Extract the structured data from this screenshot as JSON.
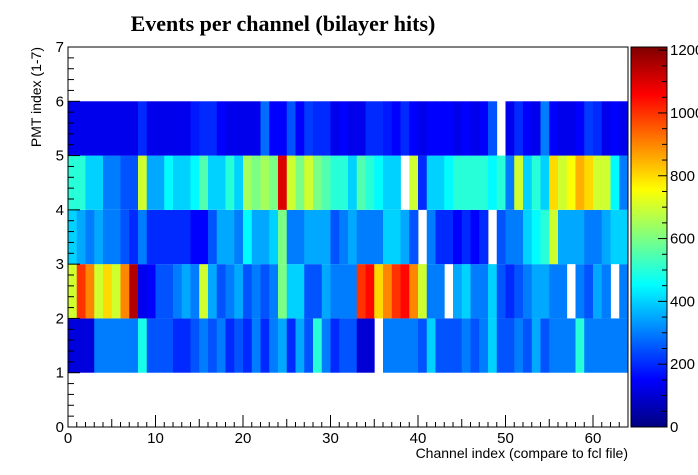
{
  "chart_data": {
    "type": "heatmap",
    "title": "Events per channel (bilayer hits)",
    "xlabel": "Channel index (compare to fcl file)",
    "ylabel": "PMT index (1-7)",
    "xlim": [
      0,
      64
    ],
    "ylim": [
      0,
      7
    ],
    "x_ticks": [
      "0",
      "10",
      "20",
      "30",
      "40",
      "50",
      "60"
    ],
    "y_ticks": [
      "0",
      "1",
      "2",
      "3",
      "4",
      "5",
      "6",
      "7"
    ],
    "colorbar": {
      "min": 0,
      "max": 1210,
      "ticks": [
        "0",
        "200",
        "400",
        "600",
        "800",
        "1000",
        "1200"
      ],
      "colormap": "jet"
    },
    "rows": [
      {
        "pmt": 1,
        "values": [
          110,
          110,
          110,
          300,
          300,
          300,
          300,
          300,
          480,
          250,
          250,
          250,
          200,
          200,
          250,
          300,
          250,
          300,
          200,
          250,
          200,
          300,
          200,
          300,
          350,
          200,
          350,
          250,
          500,
          300,
          200,
          250,
          250,
          100,
          100,
          0,
          300,
          300,
          300,
          300,
          250,
          400,
          250,
          250,
          250,
          300,
          250,
          300,
          400,
          250,
          250,
          300,
          250,
          350,
          250,
          300,
          300,
          300,
          500,
          300,
          300,
          300,
          300,
          300
        ]
      },
      {
        "pmt": 2,
        "values": [
          700,
          1000,
          900,
          700,
          800,
          700,
          900,
          1150,
          130,
          150,
          250,
          250,
          300,
          350,
          300,
          700,
          350,
          250,
          300,
          350,
          250,
          300,
          250,
          300,
          600,
          400,
          400,
          250,
          250,
          350,
          300,
          300,
          300,
          1000,
          1050,
          800,
          900,
          1000,
          1050,
          900,
          700,
          300,
          300,
          0,
          350,
          400,
          300,
          300,
          400,
          250,
          200,
          250,
          300,
          350,
          350,
          300,
          300,
          0,
          300,
          250,
          350,
          300,
          0,
          300
        ]
      },
      {
        "pmt": 3,
        "values": [
          400,
          350,
          300,
          350,
          300,
          300,
          250,
          200,
          300,
          200,
          200,
          200,
          200,
          200,
          150,
          150,
          250,
          350,
          350,
          300,
          450,
          350,
          350,
          400,
          600,
          300,
          300,
          350,
          350,
          350,
          250,
          300,
          350,
          300,
          300,
          300,
          400,
          400,
          350,
          250,
          0,
          300,
          200,
          200,
          150,
          200,
          150,
          200,
          0,
          250,
          300,
          300,
          400,
          450,
          500,
          700,
          350,
          350,
          350,
          300,
          300,
          350,
          400,
          400
        ]
      },
      {
        "pmt": 4,
        "values": [
          500,
          500,
          400,
          400,
          300,
          300,
          250,
          250,
          700,
          350,
          350,
          450,
          400,
          400,
          450,
          550,
          400,
          400,
          500,
          400,
          650,
          600,
          650,
          600,
          1100,
          700,
          600,
          700,
          600,
          550,
          500,
          500,
          400,
          550,
          500,
          450,
          400,
          400,
          0,
          700,
          200,
          400,
          400,
          450,
          500,
          500,
          500,
          500,
          450,
          500,
          300,
          700,
          400,
          500,
          400,
          800,
          700,
          750,
          850,
          800,
          700,
          700,
          450,
          300
        ]
      },
      {
        "pmt": 5,
        "values": [
          130,
          130,
          130,
          130,
          130,
          130,
          130,
          130,
          200,
          130,
          130,
          130,
          130,
          130,
          180,
          200,
          200,
          150,
          130,
          130,
          130,
          130,
          280,
          150,
          150,
          250,
          150,
          220,
          200,
          200,
          130,
          150,
          130,
          130,
          200,
          200,
          180,
          150,
          200,
          150,
          130,
          150,
          150,
          150,
          130,
          150,
          130,
          150,
          250,
          0,
          130,
          200,
          150,
          130,
          300,
          150,
          130,
          130,
          150,
          220,
          200,
          130,
          150,
          130
        ]
      }
    ]
  }
}
